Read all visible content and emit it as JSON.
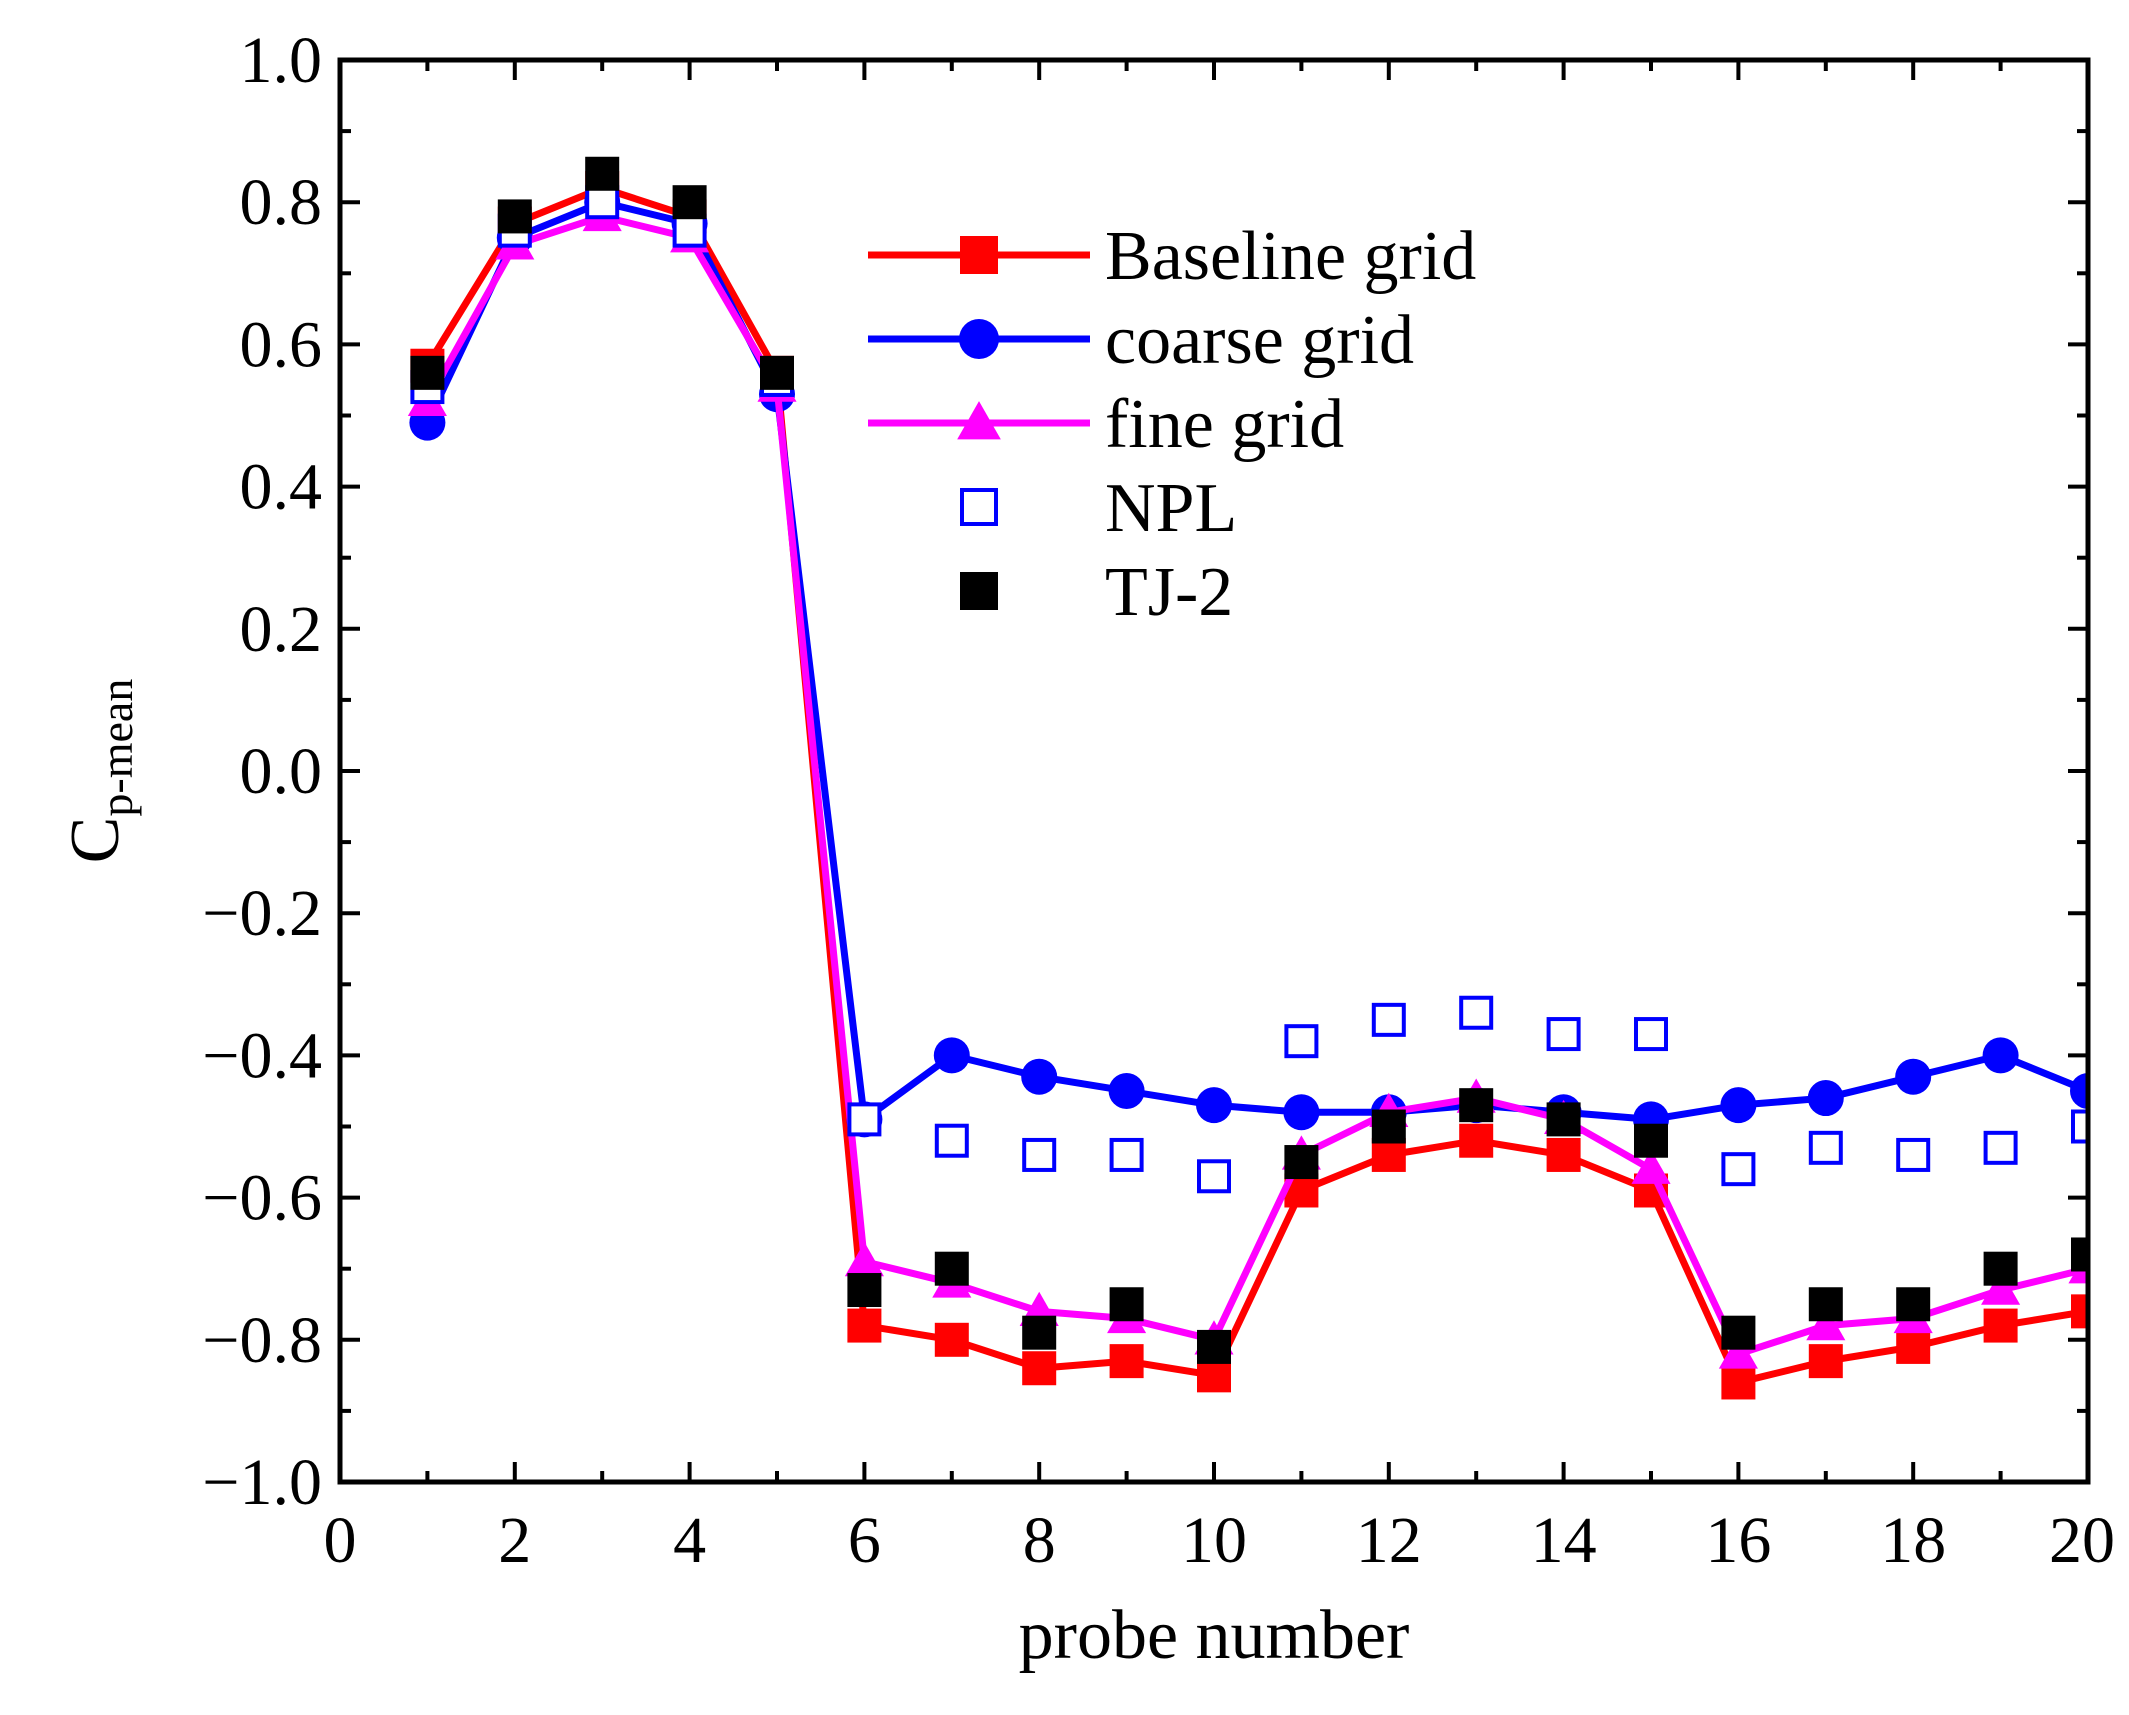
{
  "chart_data": {
    "type": "line",
    "title": "",
    "xlabel": "probe number",
    "ylabel_main": "C",
    "ylabel_sub": "p-mean",
    "xlim": [
      0,
      20
    ],
    "ylim": [
      -1.0,
      1.0
    ],
    "xticks": [
      0,
      2,
      4,
      6,
      8,
      10,
      12,
      14,
      16,
      18,
      20
    ],
    "xtick_labels": [
      "0",
      "2",
      "4",
      "6",
      "8",
      "10",
      "12",
      "14",
      "16",
      "18",
      "20"
    ],
    "yticks": [
      1.0,
      0.8,
      0.6,
      0.4,
      0.2,
      0.0,
      -0.2,
      -0.4,
      -0.6,
      -0.8,
      -1.0
    ],
    "ytick_labels": [
      "1.0",
      "0.8",
      "0.6",
      "0.4",
      "0.2",
      "0.0",
      "−0.2",
      "−0.4",
      "−0.6",
      "−0.8",
      "−1.0"
    ],
    "x": [
      1,
      2,
      3,
      4,
      5,
      6,
      7,
      8,
      9,
      10,
      11,
      12,
      13,
      14,
      15,
      16,
      17,
      18,
      19,
      20
    ],
    "legend_position": "top-right",
    "series": [
      {
        "name": "Baseline grid",
        "style": "line",
        "marker": "square-filled",
        "color": "#ff0000",
        "values": [
          0.57,
          0.77,
          0.82,
          0.78,
          0.56,
          -0.78,
          -0.8,
          -0.84,
          -0.83,
          -0.85,
          -0.59,
          -0.54,
          -0.52,
          -0.54,
          -0.59,
          -0.86,
          -0.83,
          -0.81,
          -0.78,
          -0.76
        ]
      },
      {
        "name": "coarse grid",
        "style": "line",
        "marker": "circle-filled",
        "color": "#0000ff",
        "values": [
          0.49,
          0.75,
          0.8,
          0.77,
          0.53,
          -0.49,
          -0.4,
          -0.43,
          -0.45,
          -0.47,
          -0.48,
          -0.48,
          -0.47,
          -0.48,
          -0.49,
          -0.47,
          -0.46,
          -0.43,
          -0.4,
          -0.45
        ]
      },
      {
        "name": "fine grid",
        "style": "line",
        "marker": "triangle-filled",
        "color": "#ff00ff",
        "values": [
          0.52,
          0.74,
          0.78,
          0.75,
          0.54,
          -0.69,
          -0.72,
          -0.76,
          -0.77,
          -0.8,
          -0.54,
          -0.48,
          -0.46,
          -0.49,
          -0.56,
          -0.82,
          -0.78,
          -0.77,
          -0.73,
          -0.7
        ]
      },
      {
        "name": "NPL",
        "style": "markers",
        "marker": "square-open",
        "color": "#0000ff",
        "values": [
          0.54,
          0.76,
          0.8,
          0.76,
          0.55,
          -0.49,
          -0.52,
          -0.54,
          -0.54,
          -0.57,
          -0.38,
          -0.35,
          -0.34,
          -0.37,
          -0.37,
          -0.56,
          -0.53,
          -0.54,
          -0.53,
          -0.5
        ]
      },
      {
        "name": "TJ-2",
        "style": "markers",
        "marker": "square-filled",
        "color": "#000000",
        "values": [
          0.56,
          0.78,
          0.84,
          0.8,
          0.56,
          -0.73,
          -0.7,
          -0.79,
          -0.75,
          -0.81,
          -0.55,
          -0.5,
          -0.47,
          -0.49,
          -0.52,
          -0.79,
          -0.75,
          -0.75,
          -0.7,
          -0.68
        ]
      }
    ]
  }
}
